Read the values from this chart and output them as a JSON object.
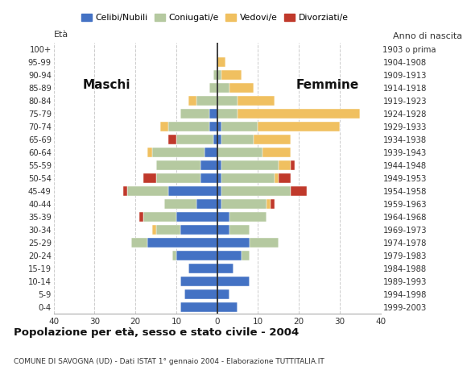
{
  "age_groups": [
    "0-4",
    "5-9",
    "10-14",
    "15-19",
    "20-24",
    "25-29",
    "30-34",
    "35-39",
    "40-44",
    "45-49",
    "50-54",
    "55-59",
    "60-64",
    "65-69",
    "70-74",
    "75-79",
    "80-84",
    "85-89",
    "90-94",
    "95-99",
    "100+"
  ],
  "birth_years": [
    "1999-2003",
    "1994-1998",
    "1989-1993",
    "1984-1988",
    "1979-1983",
    "1974-1978",
    "1969-1973",
    "1964-1968",
    "1959-1963",
    "1954-1958",
    "1949-1953",
    "1944-1948",
    "1939-1943",
    "1934-1938",
    "1929-1933",
    "1924-1928",
    "1919-1923",
    "1914-1918",
    "1909-1913",
    "1904-1908",
    "1903 o prima"
  ],
  "colors": {
    "celibe": "#4472c4",
    "coniugato": "#b5c9a0",
    "vedovo": "#f0c060",
    "divorziato": "#c0392b"
  },
  "legend_labels": [
    "Celibi/Nubili",
    "Coniugati/e",
    "Vedovi/e",
    "Divorziati/e"
  ],
  "legend_colors": [
    "#4472c4",
    "#b5c9a0",
    "#f0c060",
    "#c0392b"
  ],
  "maschi": {
    "celibe": [
      9,
      8,
      9,
      7,
      10,
      17,
      9,
      10,
      5,
      12,
      4,
      4,
      3,
      1,
      2,
      2,
      0,
      0,
      0,
      0,
      0
    ],
    "coniugato": [
      0,
      0,
      0,
      0,
      1,
      4,
      6,
      8,
      8,
      10,
      11,
      11,
      13,
      9,
      10,
      7,
      5,
      2,
      1,
      0,
      0
    ],
    "vedovo": [
      0,
      0,
      0,
      0,
      0,
      0,
      1,
      0,
      0,
      0,
      0,
      0,
      1,
      0,
      2,
      0,
      2,
      0,
      0,
      0,
      0
    ],
    "divorziato": [
      0,
      0,
      0,
      0,
      0,
      0,
      0,
      1,
      0,
      1,
      3,
      0,
      0,
      2,
      0,
      0,
      0,
      0,
      0,
      0,
      0
    ]
  },
  "femmine": {
    "nubile": [
      5,
      3,
      8,
      4,
      6,
      8,
      3,
      3,
      1,
      1,
      1,
      1,
      0,
      1,
      1,
      0,
      0,
      0,
      0,
      0,
      0
    ],
    "coniugata": [
      0,
      0,
      0,
      0,
      2,
      7,
      5,
      9,
      11,
      17,
      13,
      14,
      11,
      8,
      9,
      5,
      5,
      3,
      1,
      0,
      0
    ],
    "vedova": [
      0,
      0,
      0,
      0,
      0,
      0,
      0,
      0,
      1,
      0,
      1,
      3,
      7,
      9,
      20,
      30,
      9,
      6,
      5,
      2,
      0
    ],
    "divorziata": [
      0,
      0,
      0,
      0,
      0,
      0,
      0,
      0,
      1,
      4,
      3,
      1,
      0,
      0,
      0,
      0,
      0,
      0,
      0,
      0,
      0
    ]
  },
  "xlim": 40,
  "xticks": [
    -40,
    -30,
    -20,
    -10,
    0,
    10,
    20,
    30,
    40
  ],
  "title": "Popolazione per età, sesso e stato civile - 2004",
  "subtitle": "COMUNE DI SAVOGNA (UD) - Dati ISTAT 1° gennaio 2004 - Elaborazione TUTTITALIA.IT",
  "label_eta": "Età",
  "label_anno": "Anno di nascita",
  "label_maschi": "Maschi",
  "label_femmine": "Femmine",
  "grid_color": "#cccccc",
  "center_line_color": "#222222",
  "bg_color": "#ffffff",
  "bar_height": 0.75
}
